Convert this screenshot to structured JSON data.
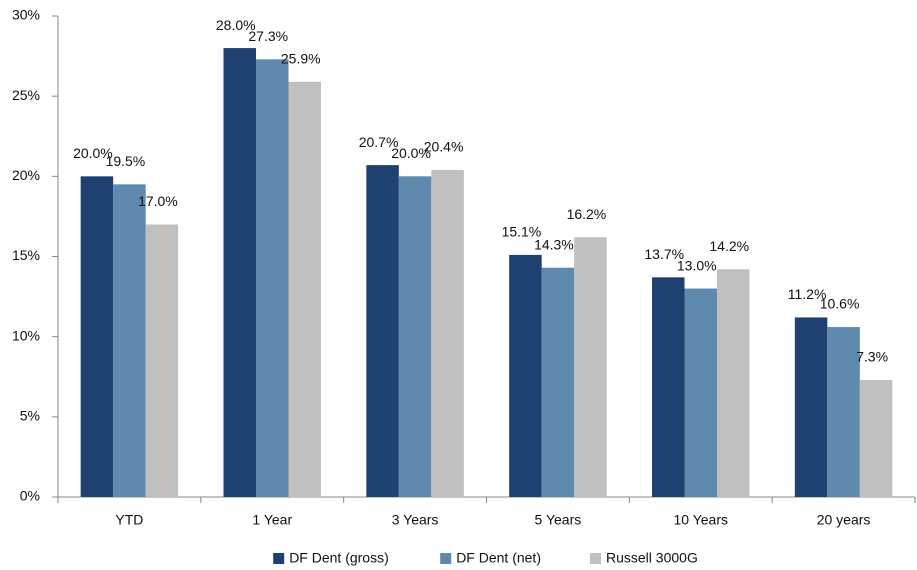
{
  "chart_data": {
    "type": "bar",
    "categories": [
      "YTD",
      "1 Year",
      "3 Years",
      "5 Years",
      "10 Years",
      "20 years"
    ],
    "series": [
      {
        "name": "DF Dent (gross)",
        "color": "#1f4172",
        "values": [
          20.0,
          28.0,
          20.7,
          15.1,
          13.7,
          11.2
        ],
        "value_labels": [
          "20.0%",
          "28.0%",
          "20.7%",
          "15.1%",
          "13.7%",
          "11.2%"
        ]
      },
      {
        "name": "DF Dent (net)",
        "color": "#5f89ad",
        "values": [
          19.5,
          27.3,
          20.0,
          14.3,
          13.0,
          10.6
        ],
        "value_labels": [
          "19.5%",
          "27.3%",
          "20.0%",
          "14.3%",
          "13.0%",
          "10.6%"
        ]
      },
      {
        "name": "Russell 3000G",
        "color": "#c0c0c0",
        "values": [
          17.0,
          25.9,
          20.4,
          16.2,
          14.2,
          7.3
        ],
        "value_labels": [
          "17.0%",
          "25.9%",
          "20.4%",
          "16.2%",
          "14.2%",
          "7.3%"
        ]
      }
    ],
    "ylim": [
      0,
      30
    ],
    "yticks": [
      {
        "value": 0,
        "label": "0%"
      },
      {
        "value": 5,
        "label": "5%"
      },
      {
        "value": 10,
        "label": "10%"
      },
      {
        "value": 15,
        "label": "15%"
      },
      {
        "value": 20,
        "label": "20%"
      },
      {
        "value": 25,
        "label": "25%"
      },
      {
        "value": 30,
        "label": "30%"
      }
    ],
    "grid": false,
    "legend": "bottom"
  }
}
